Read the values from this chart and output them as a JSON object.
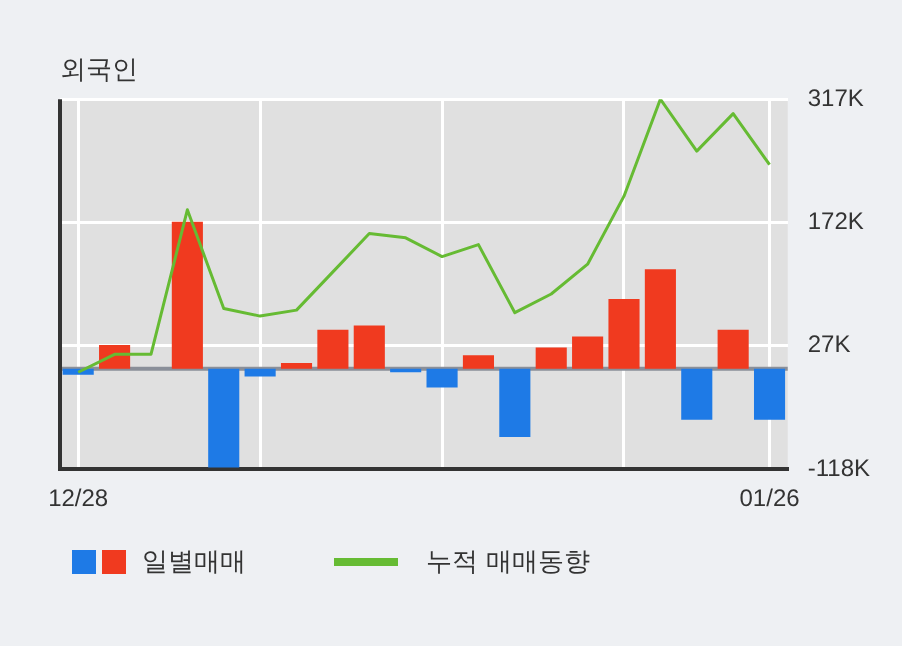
{
  "chart_data": {
    "type": "bar",
    "title": "외국인",
    "categories": [
      "12/28",
      null,
      null,
      null,
      null,
      null,
      null,
      null,
      null,
      null,
      null,
      null,
      null,
      null,
      null,
      null,
      null,
      null,
      null,
      "01/26"
    ],
    "series": [
      {
        "name": "일별매매",
        "colors": [
          "#1e7ae6",
          "#f03a1f",
          "#f03a1f",
          "#f03a1f",
          "#1e7ae6",
          "#1e7ae6",
          "#f03a1f",
          "#f03a1f",
          "#f03a1f",
          "#1e7ae6",
          "#1e7ae6",
          "#f03a1f",
          "#1e7ae6",
          "#f03a1f",
          "#f03a1f",
          "#f03a1f",
          "#f03a1f",
          "#1e7ae6",
          "#f03a1f",
          "#1e7ae6"
        ],
        "values": [
          -7,
          28,
          0,
          173,
          -116,
          -9,
          7,
          46,
          51,
          -4,
          -22,
          16,
          -80,
          25,
          38,
          82,
          117,
          -60,
          46,
          -60
        ]
      },
      {
        "name": "누적 매매동향",
        "type": "line",
        "color": "#66bb33",
        "values": [
          -4,
          17,
          17,
          187,
          71,
          62,
          69,
          114,
          159,
          154,
          132,
          146,
          66,
          88,
          123,
          203,
          317,
          256,
          300,
          240
        ]
      }
    ],
    "ylim": [
      -118,
      317
    ],
    "yticks": [
      {
        "value": -118,
        "label": "-118K"
      },
      {
        "value": 27,
        "label": "27K"
      },
      {
        "value": 172,
        "label": "172K"
      },
      {
        "value": 317,
        "label": "317K"
      }
    ],
    "grid": true,
    "legend": "bottom",
    "marker": "none"
  }
}
